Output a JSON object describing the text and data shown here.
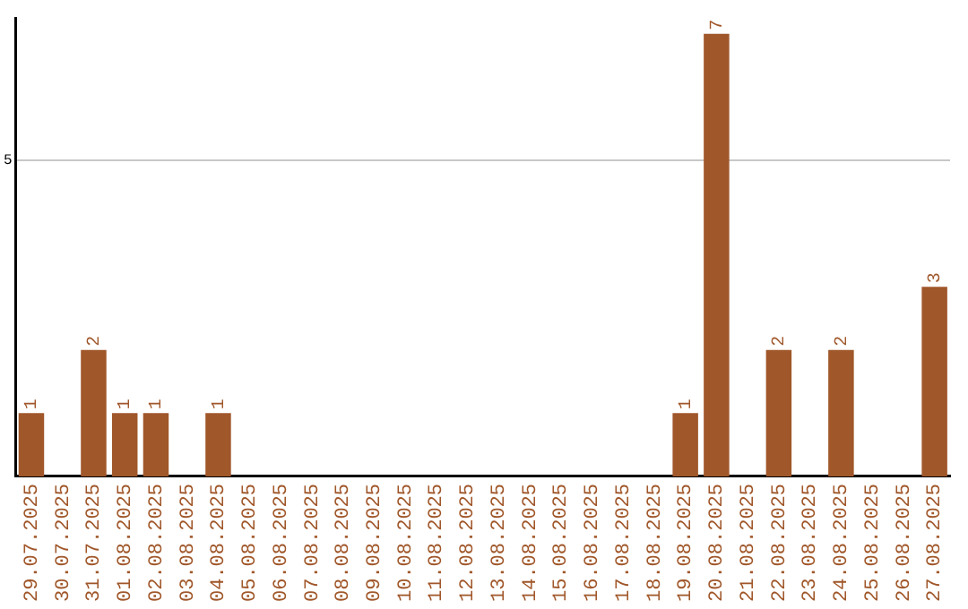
{
  "chart_data": {
    "type": "bar",
    "categories": [
      "29.07.2025",
      "30.07.2025",
      "31.07.2025",
      "01.08.2025",
      "02.08.2025",
      "03.08.2025",
      "04.08.2025",
      "05.08.2025",
      "06.08.2025",
      "07.08.2025",
      "08.08.2025",
      "09.08.2025",
      "10.08.2025",
      "11.08.2025",
      "12.08.2025",
      "13.08.2025",
      "14.08.2025",
      "15.08.2025",
      "16.08.2025",
      "17.08.2025",
      "18.08.2025",
      "19.08.2025",
      "20.08.2025",
      "21.08.2025",
      "22.08.2025",
      "23.08.2025",
      "24.08.2025",
      "25.08.2025",
      "26.08.2025",
      "27.08.2025"
    ],
    "values": [
      1,
      0,
      2,
      1,
      1,
      0,
      1,
      0,
      0,
      0,
      0,
      0,
      0,
      0,
      0,
      0,
      0,
      0,
      0,
      0,
      0,
      1,
      7,
      0,
      2,
      0,
      2,
      0,
      0,
      3
    ],
    "value_labels": [
      "1",
      null,
      "2",
      "1",
      "1",
      null,
      "1",
      null,
      null,
      null,
      null,
      null,
      null,
      null,
      null,
      null,
      null,
      null,
      null,
      null,
      null,
      "1",
      "7",
      null,
      "2",
      null,
      "2",
      null,
      null,
      "3"
    ],
    "color": "#a0572a",
    "ylim": [
      0,
      7.25
    ],
    "yticks": [
      5
    ],
    "grid": "y"
  }
}
